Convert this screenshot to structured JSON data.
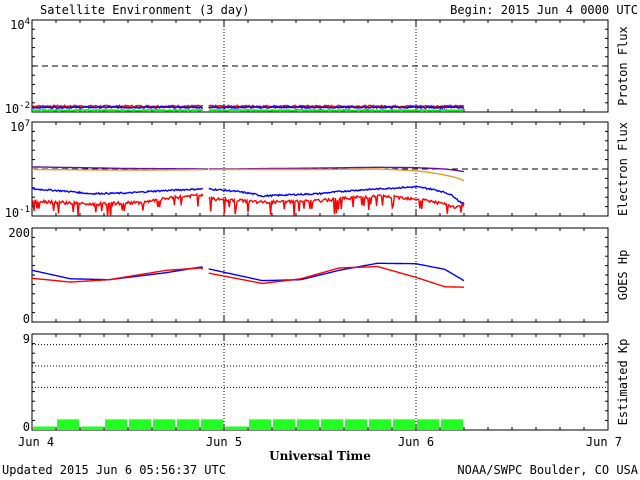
{
  "header": {
    "title": "Satellite Environment (3 day)",
    "begin": "Begin:  2015 Jun 4 0000 UTC"
  },
  "footer": {
    "updated": "Updated 2015 Jun  6 05:56:37 UTC",
    "source": "NOAA/SWPC Boulder, CO USA",
    "xlabel": "Universal Time"
  },
  "x_ticks": [
    "Jun 4",
    "Jun 5",
    "Jun 6",
    "Jun 7"
  ],
  "colors": {
    "red": "#ff0000",
    "blue": "#0000ff",
    "green": "#00ee00",
    "purple": "#6a0dad",
    "orange": "#e0a020",
    "kp_green": "#22ff22"
  },
  "chart_data": [
    {
      "type": "line",
      "name": "proton-flux-panel",
      "ylabel": "Proton Flux",
      "yscale": "log",
      "ylim": [
        0.01,
        10000
      ],
      "ytick_labels": [
        "10^-2",
        "10^4"
      ],
      "threshold": 10,
      "x_days_range": [
        0,
        3
      ],
      "data_end_day": 2.25,
      "gap_days": [
        0.89,
        0.92
      ],
      "series": [
        {
          "color": "red",
          "mean": 0.024,
          "noise": 0.003
        },
        {
          "color": "blue",
          "mean": 0.02,
          "noise": 0.002
        },
        {
          "color": "green",
          "mean": 0.013,
          "noise": 0.001
        }
      ]
    },
    {
      "type": "line",
      "name": "electron-flux-panel",
      "ylabel": "Electron Flux",
      "yscale": "log",
      "ylim": [
        0.1,
        10000000
      ],
      "ytick_labels": [
        "10^-1",
        "10^7"
      ],
      "threshold": 1000,
      "x_days_range": [
        0,
        3
      ],
      "data_end_day": 2.25,
      "gap_days": [
        0.89,
        0.92
      ],
      "series": [
        {
          "color": "purple",
          "x": [
            0,
            0.5,
            1.0,
            1.5,
            1.8,
            2.0,
            2.15,
            2.25
          ],
          "y": [
            1500,
            1100,
            1000,
            1200,
            1400,
            1300,
            1000,
            600
          ]
        },
        {
          "color": "orange",
          "x": [
            0,
            0.5,
            1.0,
            1.5,
            1.8,
            2.0,
            2.15,
            2.25
          ],
          "y": [
            900,
            800,
            900,
            900,
            1000,
            700,
            300,
            100
          ]
        },
        {
          "color": "blue",
          "x": [
            0,
            0.3,
            0.5,
            0.88,
            0.92,
            1.2,
            1.5,
            1.8,
            2.0,
            2.15,
            2.22,
            2.25
          ],
          "y": [
            20,
            8,
            9,
            20,
            20,
            5,
            8,
            20,
            30,
            10,
            2,
            1
          ]
        },
        {
          "color": "red",
          "x": [
            0,
            0.3,
            0.6,
            0.88,
            0.92,
            1.2,
            1.5,
            1.8,
            2.0,
            2.1,
            2.2,
            2.25
          ],
          "y": [
            2,
            1,
            1.5,
            6,
            3,
            1.5,
            2,
            5,
            3,
            1.5,
            0.5,
            1
          ]
        }
      ]
    },
    {
      "type": "line",
      "name": "goes-hp-panel",
      "ylabel": "GOES Hp",
      "ylim": [
        0,
        200
      ],
      "ytick_labels": [
        "0",
        "200"
      ],
      "x_days_range": [
        0,
        3
      ],
      "data_end_day": 2.25,
      "gap_days": [
        0.89,
        0.92
      ],
      "series": [
        {
          "color": "blue",
          "x": [
            0,
            0.2,
            0.4,
            0.7,
            0.88,
            0.92,
            1.2,
            1.4,
            1.6,
            1.8,
            2.0,
            2.15,
            2.25
          ],
          "y": [
            110,
            92,
            90,
            105,
            117,
            113,
            88,
            90,
            110,
            125,
            124,
            112,
            88
          ]
        },
        {
          "color": "red",
          "x": [
            0,
            0.2,
            0.4,
            0.7,
            0.88,
            0.92,
            1.2,
            1.4,
            1.6,
            1.8,
            2.0,
            2.15,
            2.25
          ],
          "y": [
            93,
            85,
            90,
            110,
            115,
            104,
            82,
            92,
            115,
            118,
            95,
            75,
            74
          ]
        }
      ]
    },
    {
      "type": "bar",
      "name": "kp-panel",
      "ylabel": "Estimated Kp",
      "ylim": [
        0,
        9
      ],
      "ytick_labels": [
        "0",
        "9"
      ],
      "gridlines": [
        4,
        6,
        8
      ],
      "bar_width_days": 0.125,
      "values": [
        0.33,
        1,
        0.33,
        1,
        1,
        1,
        1,
        1,
        0.33,
        1,
        1,
        1,
        1,
        1,
        1,
        1,
        1,
        1
      ]
    }
  ]
}
